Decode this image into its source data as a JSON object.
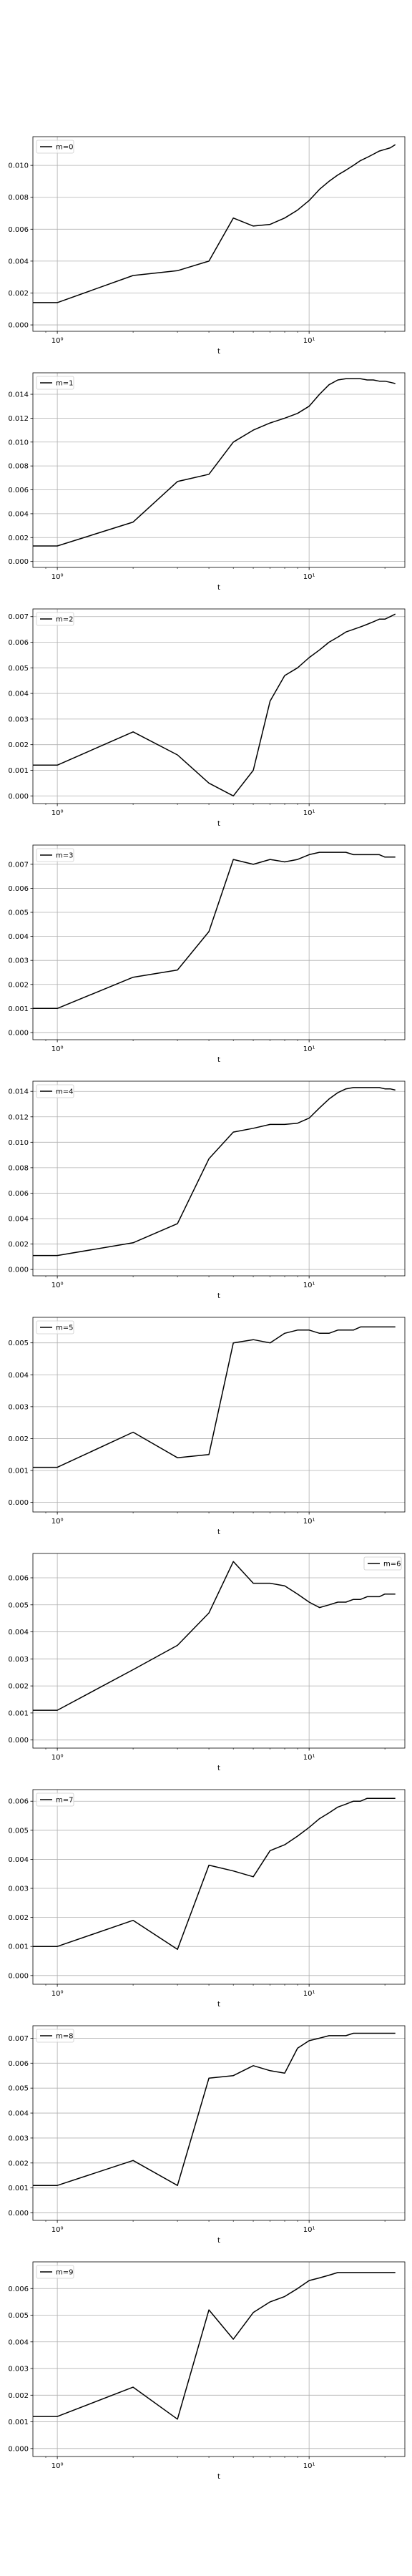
{
  "chart_data": [
    {
      "type": "line",
      "legend": "m=0",
      "legend_loc": "upper left",
      "xscale": "log",
      "xlabel": "t",
      "xlim": [
        0.8,
        24
      ],
      "ylim": [
        -0.0004,
        0.0118
      ],
      "yticks": [
        0.0,
        0.002,
        0.004,
        0.006,
        0.008,
        0.01
      ],
      "ytick_labels": [
        "0.000",
        "0.002",
        "0.004",
        "0.006",
        "0.008",
        "0.010"
      ],
      "xticks": [
        1,
        10
      ],
      "xtick_labels": [
        "10⁰",
        "10¹"
      ],
      "grid": true,
      "x": [
        0.8,
        1,
        2,
        3,
        4,
        5,
        6,
        7,
        8,
        9,
        10,
        11,
        12,
        13,
        14,
        15,
        16,
        17,
        18,
        19,
        20,
        21,
        22
      ],
      "y": [
        0.0014,
        0.0014,
        0.0031,
        0.0034,
        0.004,
        0.0067,
        0.0062,
        0.0063,
        0.0067,
        0.0072,
        0.0078,
        0.0085,
        0.009,
        0.0094,
        0.0097,
        0.01,
        0.0103,
        0.0105,
        0.0107,
        0.0109,
        0.011,
        0.0111,
        0.0113
      ]
    },
    {
      "type": "line",
      "legend": "m=1",
      "legend_loc": "upper left",
      "xscale": "log",
      "xlabel": "t",
      "xlim": [
        0.8,
        24
      ],
      "ylim": [
        -0.0005,
        0.0158
      ],
      "yticks": [
        0.0,
        0.002,
        0.004,
        0.006,
        0.008,
        0.01,
        0.012,
        0.014
      ],
      "ytick_labels": [
        "0.000",
        "0.002",
        "0.004",
        "0.006",
        "0.008",
        "0.010",
        "0.012",
        "0.014"
      ],
      "xticks": [
        1,
        10
      ],
      "xtick_labels": [
        "10⁰",
        "10¹"
      ],
      "grid": true,
      "x": [
        0.8,
        1,
        2,
        3,
        4,
        5,
        6,
        7,
        8,
        9,
        10,
        11,
        12,
        13,
        14,
        15,
        16,
        17,
        18,
        19,
        20,
        21,
        22
      ],
      "y": [
        0.0013,
        0.0013,
        0.0033,
        0.0067,
        0.0073,
        0.01,
        0.011,
        0.0116,
        0.012,
        0.0124,
        0.013,
        0.014,
        0.0148,
        0.0152,
        0.0153,
        0.0153,
        0.0153,
        0.0152,
        0.0152,
        0.0151,
        0.0151,
        0.015,
        0.0149
      ]
    },
    {
      "type": "line",
      "legend": "m=2",
      "legend_loc": "upper left",
      "xscale": "log",
      "xlabel": "t",
      "xlim": [
        0.8,
        24
      ],
      "ylim": [
        -0.0003,
        0.0073
      ],
      "yticks": [
        0.0,
        0.001,
        0.002,
        0.003,
        0.004,
        0.005,
        0.006,
        0.007
      ],
      "ytick_labels": [
        "0.000",
        "0.001",
        "0.002",
        "0.003",
        "0.004",
        "0.005",
        "0.006",
        "0.007"
      ],
      "xticks": [
        1,
        10
      ],
      "xtick_labels": [
        "10⁰",
        "10¹"
      ],
      "grid": true,
      "x": [
        0.8,
        1,
        2,
        3,
        4,
        5,
        6,
        7,
        8,
        9,
        10,
        11,
        12,
        13,
        14,
        15,
        16,
        17,
        18,
        19,
        20,
        21,
        22
      ],
      "y": [
        0.0012,
        0.0012,
        0.0025,
        0.0016,
        0.0005,
        0.0,
        0.001,
        0.0037,
        0.0047,
        0.005,
        0.0054,
        0.0057,
        0.006,
        0.0062,
        0.0064,
        0.0065,
        0.0066,
        0.0067,
        0.0068,
        0.0069,
        0.0069,
        0.007,
        0.0071
      ]
    },
    {
      "type": "line",
      "legend": "m=3",
      "legend_loc": "upper left",
      "xscale": "log",
      "xlabel": "t",
      "xlim": [
        0.8,
        24
      ],
      "ylim": [
        -0.0003,
        0.0078
      ],
      "yticks": [
        0.0,
        0.001,
        0.002,
        0.003,
        0.004,
        0.005,
        0.006,
        0.007
      ],
      "ytick_labels": [
        "0.000",
        "0.001",
        "0.002",
        "0.003",
        "0.004",
        "0.005",
        "0.006",
        "0.007"
      ],
      "xticks": [
        1,
        10
      ],
      "xtick_labels": [
        "10⁰",
        "10¹"
      ],
      "grid": true,
      "x": [
        0.8,
        1,
        2,
        3,
        4,
        5,
        6,
        7,
        8,
        9,
        10,
        11,
        12,
        13,
        14,
        15,
        16,
        17,
        18,
        19,
        20,
        21,
        22
      ],
      "y": [
        0.001,
        0.001,
        0.0023,
        0.0026,
        0.0042,
        0.0072,
        0.007,
        0.0072,
        0.0071,
        0.0072,
        0.0074,
        0.0075,
        0.0075,
        0.0075,
        0.0075,
        0.0074,
        0.0074,
        0.0074,
        0.0074,
        0.0074,
        0.0073,
        0.0073,
        0.0073
      ]
    },
    {
      "type": "line",
      "legend": "m=4",
      "legend_loc": "upper left",
      "xscale": "log",
      "xlabel": "t",
      "xlim": [
        0.8,
        24
      ],
      "ylim": [
        -0.0005,
        0.0148
      ],
      "yticks": [
        0.0,
        0.002,
        0.004,
        0.006,
        0.008,
        0.01,
        0.012,
        0.014
      ],
      "ytick_labels": [
        "0.000",
        "0.002",
        "0.004",
        "0.006",
        "0.008",
        "0.010",
        "0.012",
        "0.014"
      ],
      "xticks": [
        1,
        10
      ],
      "xtick_labels": [
        "10⁰",
        "10¹"
      ],
      "grid": true,
      "x": [
        0.8,
        1,
        2,
        3,
        4,
        5,
        6,
        7,
        8,
        9,
        10,
        11,
        12,
        13,
        14,
        15,
        16,
        17,
        18,
        19,
        20,
        21,
        22
      ],
      "y": [
        0.0011,
        0.0011,
        0.0021,
        0.0036,
        0.0087,
        0.0108,
        0.0111,
        0.0114,
        0.0114,
        0.0115,
        0.0119,
        0.0127,
        0.0134,
        0.0139,
        0.0142,
        0.0143,
        0.0143,
        0.0143,
        0.0143,
        0.0143,
        0.0142,
        0.0142,
        0.0141
      ]
    },
    {
      "type": "line",
      "legend": "m=5",
      "legend_loc": "upper left",
      "xscale": "log",
      "xlabel": "t",
      "xlim": [
        0.8,
        24
      ],
      "ylim": [
        -0.0003,
        0.0058
      ],
      "yticks": [
        0.0,
        0.001,
        0.002,
        0.003,
        0.004,
        0.005
      ],
      "ytick_labels": [
        "0.000",
        "0.001",
        "0.002",
        "0.003",
        "0.004",
        "0.005"
      ],
      "xticks": [
        1,
        10
      ],
      "xtick_labels": [
        "10⁰",
        "10¹"
      ],
      "grid": true,
      "x": [
        0.8,
        1,
        2,
        3,
        4,
        5,
        6,
        7,
        8,
        9,
        10,
        11,
        12,
        13,
        14,
        15,
        16,
        17,
        18,
        19,
        20,
        21,
        22
      ],
      "y": [
        0.0011,
        0.0011,
        0.0022,
        0.0014,
        0.0015,
        0.005,
        0.0051,
        0.005,
        0.0053,
        0.0054,
        0.0054,
        0.0053,
        0.0053,
        0.0054,
        0.0054,
        0.0054,
        0.0055,
        0.0055,
        0.0055,
        0.0055,
        0.0055,
        0.0055,
        0.0055
      ]
    },
    {
      "type": "line",
      "legend": "m=6",
      "legend_loc": "upper right",
      "xscale": "log",
      "xlabel": "t",
      "xlim": [
        0.8,
        24
      ],
      "ylim": [
        -0.0003,
        0.0069
      ],
      "yticks": [
        0.0,
        0.001,
        0.002,
        0.003,
        0.004,
        0.005,
        0.006
      ],
      "ytick_labels": [
        "0.000",
        "0.001",
        "0.002",
        "0.003",
        "0.004",
        "0.005",
        "0.006"
      ],
      "xticks": [
        1,
        10
      ],
      "xtick_labels": [
        "10⁰",
        "10¹"
      ],
      "grid": true,
      "x": [
        0.8,
        1,
        2,
        3,
        4,
        5,
        6,
        7,
        8,
        9,
        10,
        11,
        12,
        13,
        14,
        15,
        16,
        17,
        18,
        19,
        20,
        21,
        22
      ],
      "y": [
        0.0011,
        0.0011,
        0.0026,
        0.0035,
        0.0047,
        0.0066,
        0.0058,
        0.0058,
        0.0057,
        0.0054,
        0.0051,
        0.0049,
        0.005,
        0.0051,
        0.0051,
        0.0052,
        0.0052,
        0.0053,
        0.0053,
        0.0053,
        0.0054,
        0.0054,
        0.0054
      ]
    },
    {
      "type": "line",
      "legend": "m=7",
      "legend_loc": "upper left",
      "xscale": "log",
      "xlabel": "t",
      "xlim": [
        0.8,
        24
      ],
      "ylim": [
        -0.0003,
        0.0064
      ],
      "yticks": [
        0.0,
        0.001,
        0.002,
        0.003,
        0.004,
        0.005,
        0.006
      ],
      "ytick_labels": [
        "0.000",
        "0.001",
        "0.002",
        "0.003",
        "0.004",
        "0.005",
        "0.006"
      ],
      "xticks": [
        1,
        10
      ],
      "xtick_labels": [
        "10⁰",
        "10¹"
      ],
      "grid": true,
      "x": [
        0.8,
        1,
        2,
        3,
        4,
        5,
        6,
        7,
        8,
        9,
        10,
        11,
        12,
        13,
        14,
        15,
        16,
        17,
        18,
        19,
        20,
        21,
        22
      ],
      "y": [
        0.001,
        0.001,
        0.0019,
        0.0009,
        0.0038,
        0.0036,
        0.0034,
        0.0043,
        0.0045,
        0.0048,
        0.0051,
        0.0054,
        0.0056,
        0.0058,
        0.0059,
        0.006,
        0.006,
        0.0061,
        0.0061,
        0.0061,
        0.0061,
        0.0061,
        0.0061
      ]
    },
    {
      "type": "line",
      "legend": "m=8",
      "legend_loc": "upper left",
      "xscale": "log",
      "xlabel": "t",
      "xlim": [
        0.8,
        24
      ],
      "ylim": [
        -0.0003,
        0.0075
      ],
      "yticks": [
        0.0,
        0.001,
        0.002,
        0.003,
        0.004,
        0.005,
        0.006,
        0.007
      ],
      "ytick_labels": [
        "0.000",
        "0.001",
        "0.002",
        "0.003",
        "0.004",
        "0.005",
        "0.006",
        "0.007"
      ],
      "xticks": [
        1,
        10
      ],
      "xtick_labels": [
        "10⁰",
        "10¹"
      ],
      "grid": true,
      "x": [
        0.8,
        1,
        2,
        3,
        4,
        5,
        6,
        7,
        8,
        9,
        10,
        11,
        12,
        13,
        14,
        15,
        16,
        17,
        18,
        19,
        20,
        21,
        22
      ],
      "y": [
        0.0011,
        0.0011,
        0.0021,
        0.0011,
        0.0054,
        0.0055,
        0.0059,
        0.0057,
        0.0056,
        0.0066,
        0.0069,
        0.007,
        0.0071,
        0.0071,
        0.0071,
        0.0072,
        0.0072,
        0.0072,
        0.0072,
        0.0072,
        0.0072,
        0.0072,
        0.0072
      ]
    },
    {
      "type": "line",
      "legend": "m=9",
      "legend_loc": "upper left",
      "xscale": "log",
      "xlabel": "t",
      "xlim": [
        0.8,
        24
      ],
      "ylim": [
        -0.0003,
        0.007
      ],
      "yticks": [
        0.0,
        0.001,
        0.002,
        0.003,
        0.004,
        0.005,
        0.006
      ],
      "ytick_labels": [
        "0.000",
        "0.001",
        "0.002",
        "0.003",
        "0.004",
        "0.005",
        "0.006"
      ],
      "xticks": [
        1,
        10
      ],
      "xtick_labels": [
        "10⁰",
        "10¹"
      ],
      "grid": true,
      "x": [
        0.8,
        1,
        2,
        3,
        4,
        5,
        6,
        7,
        8,
        9,
        10,
        11,
        12,
        13,
        14,
        15,
        16,
        17,
        18,
        19,
        20,
        21,
        22
      ],
      "y": [
        0.0012,
        0.0012,
        0.0023,
        0.0011,
        0.0052,
        0.0041,
        0.0051,
        0.0055,
        0.0057,
        0.006,
        0.0063,
        0.0064,
        0.0065,
        0.0066,
        0.0066,
        0.0066,
        0.0066,
        0.0066,
        0.0066,
        0.0066,
        0.0066,
        0.0066,
        0.0066
      ]
    }
  ]
}
